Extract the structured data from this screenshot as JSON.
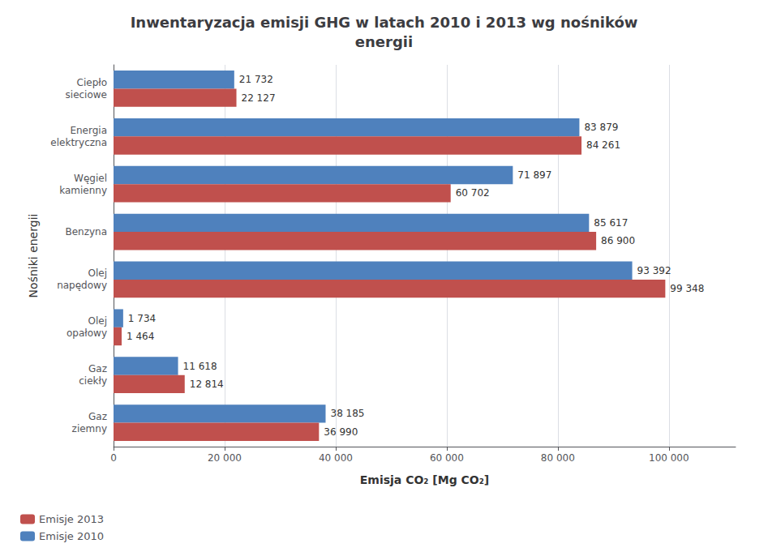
{
  "chart_data": {
    "type": "bar",
    "orientation": "horizontal",
    "title": "Inwentaryzacja emisji GHG w latach 2010 i 2013 wg nośników\nenergii",
    "xlabel": "Emisja CO₂ [Mg CO₂]",
    "ylabel": "Nośniki energii",
    "categories": [
      "Gaz\nziemny",
      "Gaz\nciekły",
      "Olej\nopałowy",
      "Olej\nnapędowy",
      "Benzyna",
      "Węgiel\nkamienny",
      "Energia\nelektryczna",
      "Ciepło\nsieciowe"
    ],
    "series": [
      {
        "name": "Emisje 2013",
        "color": "#C0504D",
        "values": [
          36990,
          12814,
          1464,
          99348,
          86900,
          60702,
          84261,
          22127
        ],
        "value_labels": [
          "36 990",
          "12 814",
          "1 464",
          "99 348",
          "86 900",
          "60 702",
          "84 261",
          "22 127"
        ]
      },
      {
        "name": "Emisje 2010",
        "color": "#4F81BD",
        "values": [
          38185,
          11618,
          1734,
          93392,
          85617,
          71897,
          83879,
          21732
        ],
        "value_labels": [
          "38 185",
          "11 618",
          "1 734",
          "93 392",
          "85 617",
          "71 897",
          "83 879",
          "21 732"
        ]
      }
    ],
    "xlim": [
      0,
      112000
    ],
    "xticks": [
      0,
      {
        "value": 20000,
        "label": "20 000"
      },
      {
        "value": 40000,
        "label": "40 000"
      },
      {
        "value": 60000,
        "label": "60 000"
      },
      {
        "value": 80000,
        "label": "80 000"
      },
      {
        "value": 100000,
        "label": "100 000"
      }
    ],
    "grid": true,
    "legend": "lower left",
    "data_labels": true
  }
}
